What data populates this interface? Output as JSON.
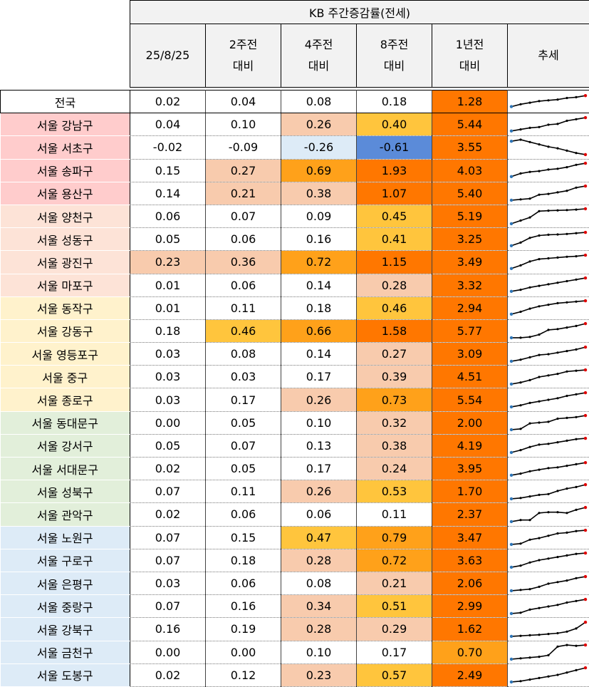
{
  "chart_data": {
    "type": "table",
    "title": "KB 주간증감률(전세)",
    "columns": [
      {
        "line1": "25/8/25",
        "line2": ""
      },
      {
        "line1": "2주전",
        "line2": "대비"
      },
      {
        "line1": "4주전",
        "line2": "대비"
      },
      {
        "line1": "8주전",
        "line2": "대비"
      },
      {
        "line1": "1년전",
        "line2": "대비"
      },
      {
        "line1": "추세",
        "line2": ""
      }
    ],
    "group_colors": {
      "national": "#ffffff",
      "g1": "#ffcccc",
      "g2": "#fde3d7",
      "g3": "#fff2cc",
      "g4": "#e2efda",
      "g5": "#ddebf7"
    },
    "rows": [
      {
        "name": "전국",
        "group": "national",
        "values": [
          "0.02",
          "0.04",
          "0.08",
          "0.18",
          "1.28"
        ],
        "trend": [
          0.2,
          0.35,
          0.45,
          0.55,
          0.6,
          0.65,
          0.75,
          0.8,
          0.9
        ]
      },
      {
        "name": "서울 강남구",
        "group": "g1",
        "values": [
          "0.04",
          "0.10",
          "0.26",
          "0.40",
          "5.44"
        ],
        "trend": [
          0.1,
          0.2,
          0.3,
          0.35,
          0.5,
          0.55,
          0.75,
          0.85,
          0.95
        ]
      },
      {
        "name": "서울 서초구",
        "group": "g1",
        "values": [
          "-0.02",
          "-0.09",
          "-0.26",
          "-0.61",
          "3.55"
        ],
        "trend": [
          0.9,
          1.0,
          0.85,
          0.7,
          0.55,
          0.45,
          0.3,
          0.15,
          0.05
        ]
      },
      {
        "name": "서울 송파구",
        "group": "g1",
        "values": [
          "0.15",
          "0.27",
          "0.69",
          "1.93",
          "4.03"
        ],
        "trend": [
          0.1,
          0.3,
          0.4,
          0.45,
          0.55,
          0.6,
          0.7,
          0.85,
          0.95
        ]
      },
      {
        "name": "서울 용산구",
        "group": "g1",
        "values": [
          "0.14",
          "0.21",
          "0.38",
          "1.07",
          "5.40"
        ],
        "trend": [
          0.05,
          0.1,
          0.15,
          0.4,
          0.45,
          0.55,
          0.65,
          0.85,
          0.95
        ]
      },
      {
        "name": "서울 양천구",
        "group": "g2",
        "values": [
          "0.06",
          "0.07",
          "0.09",
          "0.45",
          "5.19"
        ],
        "trend": [
          0.05,
          0.25,
          0.45,
          0.85,
          0.88,
          0.9,
          0.92,
          0.95,
          1.0
        ]
      },
      {
        "name": "서울 성동구",
        "group": "g2",
        "values": [
          "0.05",
          "0.06",
          "0.16",
          "0.41",
          "3.25"
        ],
        "trend": [
          0.1,
          0.3,
          0.6,
          0.75,
          0.8,
          0.82,
          0.85,
          0.9,
          0.95
        ]
      },
      {
        "name": "서울 광진구",
        "group": "g2",
        "values": [
          "0.23",
          "0.36",
          "0.72",
          "1.15",
          "3.49"
        ],
        "trend": [
          0.1,
          0.3,
          0.55,
          0.7,
          0.75,
          0.8,
          0.85,
          0.88,
          0.95
        ]
      },
      {
        "name": "서울 마포구",
        "group": "g2",
        "values": [
          "0.01",
          "0.06",
          "0.14",
          "0.28",
          "3.32"
        ],
        "trend": [
          0.1,
          0.2,
          0.35,
          0.45,
          0.55,
          0.65,
          0.75,
          0.85,
          0.95
        ]
      },
      {
        "name": "서울 동작구",
        "group": "g3",
        "values": [
          "0.01",
          "0.11",
          "0.18",
          "0.46",
          "2.94"
        ],
        "trend": [
          0.1,
          0.25,
          0.45,
          0.6,
          0.7,
          0.8,
          0.85,
          0.9,
          0.95
        ]
      },
      {
        "name": "서울 강동구",
        "group": "g3",
        "values": [
          "0.18",
          "0.46",
          "0.66",
          "1.58",
          "5.77"
        ],
        "trend": [
          0.05,
          0.05,
          0.1,
          0.25,
          0.55,
          0.6,
          0.7,
          0.8,
          0.95
        ]
      },
      {
        "name": "서울 영등포구",
        "group": "g3",
        "values": [
          "0.03",
          "0.08",
          "0.14",
          "0.27",
          "3.09"
        ],
        "trend": [
          0.05,
          0.15,
          0.3,
          0.45,
          0.5,
          0.6,
          0.7,
          0.8,
          0.95
        ]
      },
      {
        "name": "서울 중구",
        "group": "g3",
        "values": [
          "0.03",
          "0.03",
          "0.17",
          "0.39",
          "4.51"
        ],
        "trend": [
          0.05,
          0.15,
          0.3,
          0.5,
          0.6,
          0.7,
          0.85,
          0.9,
          0.95
        ]
      },
      {
        "name": "서울 종로구",
        "group": "g3",
        "values": [
          "0.03",
          "0.17",
          "0.26",
          "0.73",
          "5.54"
        ],
        "trend": [
          0.05,
          0.15,
          0.3,
          0.4,
          0.5,
          0.6,
          0.75,
          0.85,
          0.95
        ]
      },
      {
        "name": "서울 동대문구",
        "group": "g4",
        "values": [
          "0.00",
          "0.05",
          "0.10",
          "0.32",
          "2.00"
        ],
        "trend": [
          0.05,
          0.1,
          0.45,
          0.5,
          0.55,
          0.75,
          0.8,
          0.85,
          0.95
        ]
      },
      {
        "name": "서울 강서구",
        "group": "g4",
        "values": [
          "0.05",
          "0.07",
          "0.13",
          "0.38",
          "4.19"
        ],
        "trend": [
          0.05,
          0.2,
          0.4,
          0.55,
          0.6,
          0.7,
          0.8,
          0.9,
          0.95
        ]
      },
      {
        "name": "서울 서대문구",
        "group": "g4",
        "values": [
          "0.02",
          "0.05",
          "0.17",
          "0.24",
          "3.95"
        ],
        "trend": [
          0.1,
          0.2,
          0.35,
          0.45,
          0.55,
          0.6,
          0.7,
          0.8,
          0.9
        ]
      },
      {
        "name": "서울 성북구",
        "group": "g4",
        "values": [
          "0.07",
          "0.11",
          "0.26",
          "0.53",
          "1.70"
        ],
        "trend": [
          0.05,
          0.1,
          0.2,
          0.3,
          0.35,
          0.55,
          0.7,
          0.8,
          0.95
        ]
      },
      {
        "name": "서울 관악구",
        "group": "g4",
        "values": [
          "0.02",
          "0.06",
          "0.06",
          "0.11",
          "2.37"
        ],
        "trend": [
          0.05,
          0.15,
          0.15,
          0.6,
          0.65,
          0.65,
          0.6,
          0.8,
          0.95
        ]
      },
      {
        "name": "서울 노원구",
        "group": "g5",
        "values": [
          "0.07",
          "0.15",
          "0.47",
          "0.79",
          "3.47"
        ],
        "trend": [
          0.05,
          0.1,
          0.35,
          0.45,
          0.6,
          0.75,
          0.8,
          0.9,
          0.95
        ]
      },
      {
        "name": "서울 구로구",
        "group": "g5",
        "values": [
          "0.07",
          "0.18",
          "0.28",
          "0.72",
          "3.63"
        ],
        "trend": [
          0.05,
          0.15,
          0.35,
          0.5,
          0.6,
          0.7,
          0.8,
          0.9,
          0.95
        ]
      },
      {
        "name": "서울 은평구",
        "group": "g5",
        "values": [
          "0.03",
          "0.06",
          "0.08",
          "0.21",
          "2.06"
        ],
        "trend": [
          0.05,
          0.1,
          0.15,
          0.3,
          0.5,
          0.6,
          0.7,
          0.85,
          0.95
        ]
      },
      {
        "name": "서울 중랑구",
        "group": "g5",
        "values": [
          "0.07",
          "0.16",
          "0.34",
          "0.51",
          "2.99"
        ],
        "trend": [
          0.05,
          0.1,
          0.3,
          0.4,
          0.5,
          0.6,
          0.75,
          0.85,
          0.95
        ]
      },
      {
        "name": "서울 강북구",
        "group": "g5",
        "values": [
          "0.16",
          "0.19",
          "0.28",
          "0.29",
          "1.62"
        ],
        "trend": [
          0.05,
          0.08,
          0.12,
          0.15,
          0.2,
          0.25,
          0.35,
          0.55,
          0.95
        ]
      },
      {
        "name": "서울 금천구",
        "group": "g5",
        "values": [
          "0.00",
          "0.00",
          "0.10",
          "0.17",
          "0.70"
        ],
        "trend": [
          0.05,
          0.1,
          0.15,
          0.2,
          0.3,
          0.85,
          0.95,
          0.9,
          0.95
        ]
      },
      {
        "name": "서울 도봉구",
        "group": "g5",
        "values": [
          "0.02",
          "0.12",
          "0.23",
          "0.57",
          "2.49"
        ],
        "trend": [
          0.05,
          0.1,
          0.2,
          0.3,
          0.4,
          0.5,
          0.65,
          0.8,
          0.95
        ]
      }
    ],
    "cell_colors": [
      [
        "#ffffff",
        "#ffffff",
        "#ffffff",
        "#ffffff",
        "#ff7700"
      ],
      [
        "#ffffff",
        "#ffffff",
        "#f8cbad",
        "#ffc53d",
        "#ff7700"
      ],
      [
        "#ffffff",
        "#ffffff",
        "#ddebf7",
        "#5b8bd9",
        "#ff7700"
      ],
      [
        "#ffffff",
        "#f8cbad",
        "#ffa11a",
        "#ff7700",
        "#ff7700"
      ],
      [
        "#ffffff",
        "#f8cbad",
        "#f8cbad",
        "#ff7700",
        "#ff7700"
      ],
      [
        "#ffffff",
        "#ffffff",
        "#ffffff",
        "#ffc53d",
        "#ff7700"
      ],
      [
        "#ffffff",
        "#ffffff",
        "#ffffff",
        "#ffc53d",
        "#ff7700"
      ],
      [
        "#f8cbad",
        "#f8cbad",
        "#ffa11a",
        "#ff7700",
        "#ff7700"
      ],
      [
        "#ffffff",
        "#ffffff",
        "#ffffff",
        "#f8cbad",
        "#ff7700"
      ],
      [
        "#ffffff",
        "#ffffff",
        "#ffffff",
        "#ffc53d",
        "#ff7700"
      ],
      [
        "#ffffff",
        "#ffc53d",
        "#ffa11a",
        "#ff7700",
        "#ff7700"
      ],
      [
        "#ffffff",
        "#ffffff",
        "#ffffff",
        "#f8cbad",
        "#ff7700"
      ],
      [
        "#ffffff",
        "#ffffff",
        "#ffffff",
        "#f8cbad",
        "#ff7700"
      ],
      [
        "#ffffff",
        "#ffffff",
        "#f8cbad",
        "#ffa11a",
        "#ff7700"
      ],
      [
        "#ffffff",
        "#ffffff",
        "#ffffff",
        "#f8cbad",
        "#ff7700"
      ],
      [
        "#ffffff",
        "#ffffff",
        "#ffffff",
        "#f8cbad",
        "#ff7700"
      ],
      [
        "#ffffff",
        "#ffffff",
        "#ffffff",
        "#f8cbad",
        "#ff7700"
      ],
      [
        "#ffffff",
        "#ffffff",
        "#f8cbad",
        "#ffc53d",
        "#ff7700"
      ],
      [
        "#ffffff",
        "#ffffff",
        "#ffffff",
        "#ffffff",
        "#ff7700"
      ],
      [
        "#ffffff",
        "#ffffff",
        "#ffc53d",
        "#ffa11a",
        "#ff7700"
      ],
      [
        "#ffffff",
        "#ffffff",
        "#f8cbad",
        "#ffa11a",
        "#ff7700"
      ],
      [
        "#ffffff",
        "#ffffff",
        "#ffffff",
        "#f8cbad",
        "#ff7700"
      ],
      [
        "#ffffff",
        "#ffffff",
        "#f8cbad",
        "#ffc53d",
        "#ff7700"
      ],
      [
        "#ffffff",
        "#ffffff",
        "#f8cbad",
        "#f8cbad",
        "#ff7700"
      ],
      [
        "#ffffff",
        "#ffffff",
        "#ffffff",
        "#ffffff",
        "#ffa11a"
      ],
      [
        "#ffffff",
        "#ffffff",
        "#f8cbad",
        "#ffc53d",
        "#ff7700"
      ]
    ],
    "trend_colors": {
      "line": "#000000",
      "first_point": "#2e75b6",
      "last_point": "#e00000"
    }
  }
}
